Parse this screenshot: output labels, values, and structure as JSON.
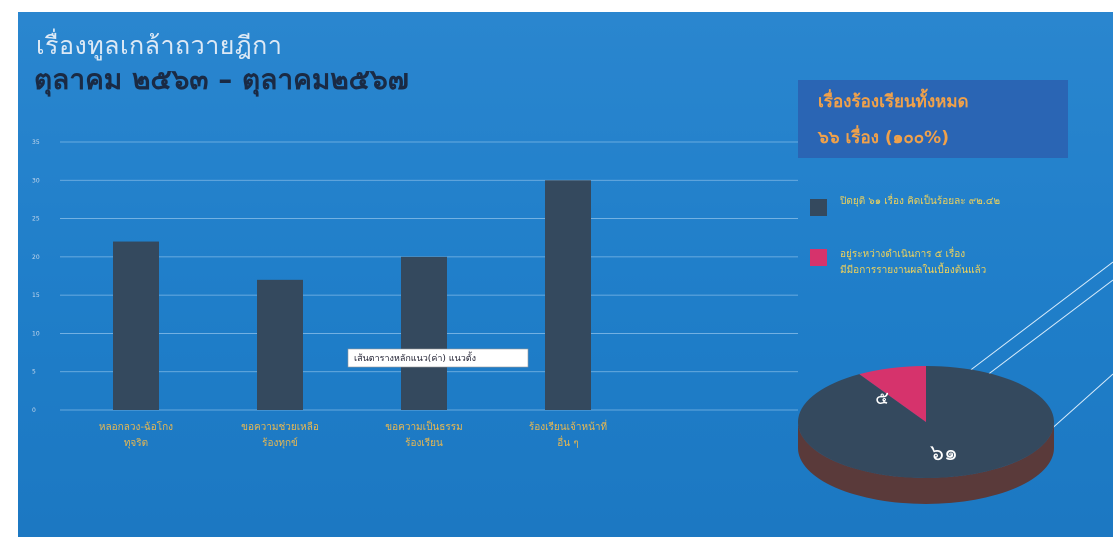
{
  "slide": {
    "title_line1": "เรื่องทูลเกล้าถวายฎีกา",
    "title_line2": "ตุลาคม ๒๕๖๓ – ตุลาคม๒๕๖๗"
  },
  "legend": {
    "title_line1": "เรื่องร้องเรียนทั้งหมด",
    "title_line2": "๖๖ เรื่อง (๑๐๐%)",
    "items": [
      {
        "label": "ปิดยุติ ๖๑ เรื่อง คิดเป็นร้อยละ ๙๒.๔๒",
        "color": "#34495e"
      },
      {
        "label": "อยู่ระหว่างดำเนินการ ๕ เรื่อง",
        "label2": "มีมีอการรายงานผลในเบื้องต้นแล้ว",
        "color": "#d6336c"
      }
    ]
  },
  "colors": {
    "bar": "#34495e",
    "pie_main": "#34495e",
    "pie_pink": "#d6336c",
    "pie_side": "#5a3a3a"
  },
  "chart_data": [
    {
      "type": "bar",
      "categories": [
        "หลอกลวง-ฉ้อโกง / ทุจริต",
        "ขอความช่วยเหลือ / ร้องทุกข์",
        "ขอความเป็นธรรม / ร้องเรียน",
        "ร้องเรียนเจ้าหน้าที่ / อื่น ๆ"
      ],
      "values": [
        22,
        17,
        20,
        30
      ],
      "ylim": [
        0,
        35
      ],
      "yticks": [
        "0",
        "5",
        "10",
        "15",
        "20",
        "25",
        "30",
        "35"
      ],
      "data_label": "เส้นตารางหลักแนว(ค่า) แนวตั้ง",
      "grid": true
    },
    {
      "type": "pie",
      "labels": [
        "๖๑",
        "๕"
      ],
      "values": [
        61,
        5
      ],
      "colors": [
        "#34495e",
        "#d6336c"
      ]
    }
  ]
}
